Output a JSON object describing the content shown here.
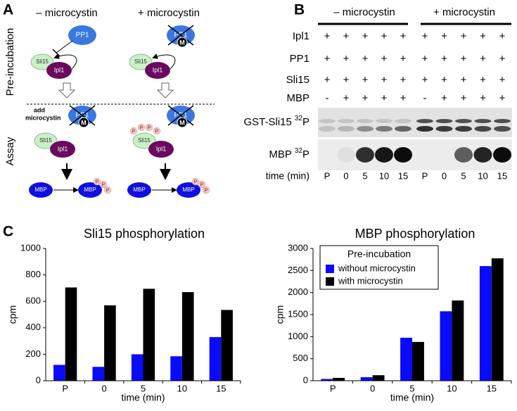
{
  "panel_a": {
    "letter": "A",
    "minus_title": "– microcystin",
    "plus_title": "+ microcystin",
    "pre_incubation": "Pre-incubation",
    "assay": "Assay",
    "add": "add",
    "microcystin": "microcystin",
    "pp1": "PP1",
    "sli15": "Sli15",
    "ipl1": "Ipl1",
    "mbp": "MBP",
    "m": "M",
    "p": "P"
  },
  "panel_b": {
    "letter": "B",
    "minus_header": "– microcystin",
    "plus_header": "+ microcystin",
    "rows": [
      {
        "label": "Ipl1",
        "signs": [
          "+",
          "+",
          "+",
          "+",
          "+",
          "+",
          "+",
          "+",
          "+",
          "+"
        ]
      },
      {
        "label": "PP1",
        "signs": [
          "+",
          "+",
          "+",
          "+",
          "+",
          "+",
          "+",
          "+",
          "+",
          "+"
        ]
      },
      {
        "label": "Sli15",
        "signs": [
          "+",
          "+",
          "+",
          "+",
          "+",
          "+",
          "+",
          "+",
          "+",
          "+"
        ]
      },
      {
        "label": "MBP",
        "signs": [
          "-",
          "+",
          "+",
          "+",
          "+",
          "-",
          "+",
          "+",
          "+",
          "+"
        ]
      }
    ],
    "blots": [
      {
        "label": "GST-Sli15",
        "isotope": "32",
        "element": "P"
      },
      {
        "label": "MBP",
        "isotope": "32",
        "element": "P"
      }
    ],
    "time_label": "time (min)",
    "times": [
      "P",
      "0",
      "5",
      "10",
      "15",
      "P",
      "0",
      "5",
      "10",
      "15"
    ]
  },
  "panel_c": {
    "letter": "C"
  },
  "chart_data": [
    {
      "type": "bar",
      "title": "Sli15  phosphorylation",
      "xlabel": "time (min)",
      "ylabel": "cpm",
      "categories": [
        "P",
        "0",
        "5",
        "10",
        "15"
      ],
      "series": [
        {
          "color": "#0a0aff",
          "values": [
            120,
            105,
            200,
            185,
            330
          ]
        },
        {
          "color": "#000000",
          "values": [
            705,
            570,
            695,
            670,
            535
          ]
        }
      ],
      "ylim": [
        0,
        1000
      ],
      "yticks": [
        0,
        200,
        400,
        600,
        800,
        1000
      ]
    },
    {
      "type": "bar",
      "title": "MBP phosphorylation",
      "xlabel": "time (min)",
      "ylabel": "cpm",
      "categories": [
        "P",
        "0",
        "5",
        "10",
        "15"
      ],
      "series": [
        {
          "name": "without microcystin",
          "color": "#0a0aff",
          "values": [
            40,
            80,
            975,
            1575,
            2600
          ]
        },
        {
          "name": "with microcystin",
          "color": "#000000",
          "values": [
            65,
            125,
            880,
            1820,
            2775
          ]
        }
      ],
      "ylim": [
        0,
        3000
      ],
      "yticks": [
        0,
        500,
        1000,
        1500,
        2000,
        2500,
        3000
      ],
      "legend_title": "Pre-incubation",
      "legend": "upper left"
    }
  ]
}
